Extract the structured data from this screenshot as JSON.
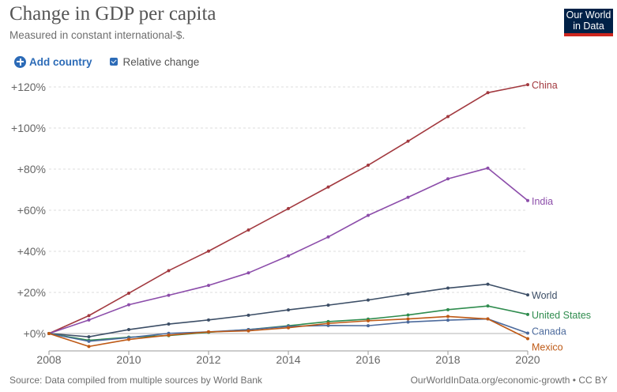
{
  "header": {
    "title": "Change in GDP per capita",
    "subtitle": "Measured in constant international-$.",
    "logo_line1": "Our World",
    "logo_line2": "in Data"
  },
  "controls": {
    "add_country_label": "Add country",
    "relative_change_label": "Relative change",
    "relative_change_checked": true
  },
  "footer": {
    "source": "Source: Data compiled from multiple sources by World Bank",
    "url": "OurWorldInData.org/economic-growth • CC BY"
  },
  "chart_data": {
    "type": "line",
    "title": "Change in GDP per capita",
    "subtitle": "Measured in constant international-$.",
    "x": [
      2008,
      2009,
      2010,
      2011,
      2012,
      2013,
      2014,
      2015,
      2016,
      2017,
      2018,
      2019,
      2020
    ],
    "xlim": [
      2008,
      2020
    ],
    "ylim": [
      0,
      120
    ],
    "x_ticks": [
      {
        "value": 2008,
        "label": "2008"
      },
      {
        "value": 2010,
        "label": "2010"
      },
      {
        "value": 2012,
        "label": "2012"
      },
      {
        "value": 2014,
        "label": "2014"
      },
      {
        "value": 2016,
        "label": "2016"
      },
      {
        "value": 2018,
        "label": "2018"
      },
      {
        "value": 2020,
        "label": "2020"
      }
    ],
    "y_ticks": [
      {
        "value": 0,
        "label": "+0%"
      },
      {
        "value": 20,
        "label": "+20%"
      },
      {
        "value": 40,
        "label": "+40%"
      },
      {
        "value": 60,
        "label": "+60%"
      },
      {
        "value": 80,
        "label": "+80%"
      },
      {
        "value": 100,
        "label": "+100%"
      },
      {
        "value": 120,
        "label": "+120%"
      }
    ],
    "grid": "horizontal dashed",
    "legend": "inline labels at line ends (right)",
    "series": [
      {
        "name": "China",
        "color": "#a2393f",
        "values": [
          0,
          8.7,
          19.6,
          30.6,
          40.1,
          50.4,
          60.8,
          71.3,
          81.9,
          93.6,
          105.6,
          117.2,
          121.1
        ]
      },
      {
        "name": "India",
        "color": "#8c4daa",
        "values": [
          0,
          6.6,
          14,
          18.6,
          23.4,
          29.5,
          37.8,
          47,
          57.5,
          66.3,
          75.3,
          80.5,
          64.7
        ]
      },
      {
        "name": "World",
        "color": "#3c4e66",
        "values": [
          0,
          -1.6,
          1.9,
          4.6,
          6.6,
          8.9,
          11.5,
          13.8,
          16.3,
          19.3,
          22.1,
          24,
          18.8
        ]
      },
      {
        "name": "United States",
        "color": "#2f8c4e",
        "values": [
          0,
          -3.3,
          -1.8,
          -1,
          0.6,
          1.9,
          3.8,
          5.8,
          7,
          9,
          11.6,
          13.4,
          9.3
        ]
      },
      {
        "name": "Canada",
        "color": "#4c6a9c",
        "values": [
          0,
          -3.8,
          -2,
          0.1,
          0.8,
          1.9,
          3.5,
          3.9,
          3.8,
          5.6,
          6.5,
          7.1,
          0.2
        ]
      },
      {
        "name": "Mexico",
        "color": "#be5915",
        "values": [
          0,
          -6.3,
          -2.9,
          -0.8,
          0.8,
          1.3,
          2.8,
          4.9,
          6.2,
          7.1,
          8.3,
          7.1,
          -2.5
        ]
      }
    ]
  }
}
